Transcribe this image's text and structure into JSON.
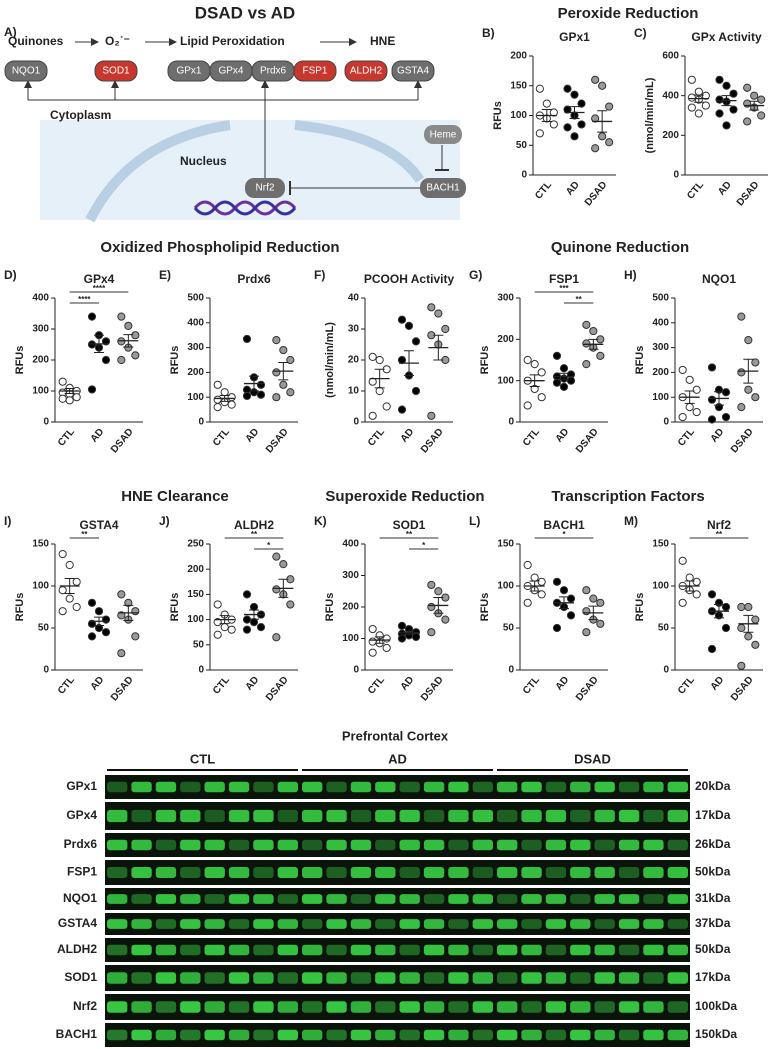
{
  "diagram": {
    "panel": "A)",
    "title": "DSAD vs AD",
    "steps": [
      "Quinones",
      "O₂˙⁻",
      "Lipid Peroxidation",
      "HNE"
    ],
    "proteins": [
      {
        "label": "NQO1",
        "color": "#6e6e6e"
      },
      {
        "label": "SOD1",
        "color": "#c8372d"
      },
      {
        "label": "GPx1",
        "color": "#6e6e6e"
      },
      {
        "label": "GPx4",
        "color": "#6e6e6e"
      },
      {
        "label": "Prdx6",
        "color": "#6e6e6e"
      },
      {
        "label": "FSP1",
        "color": "#c8372d"
      },
      {
        "label": "ALDH2",
        "color": "#c8372d"
      },
      {
        "label": "GSTA4",
        "color": "#6e6e6e"
      }
    ],
    "cytoplasm": "Cytoplasm",
    "nucleus": "Nucleus",
    "heme": "Heme",
    "nrf2": "Nrf2",
    "bach1": "BACH1"
  },
  "sections": [
    "Peroxide Reduction",
    "Oxidized Phospholipid Reduction",
    "Quinone Reduction",
    "HNE Clearance",
    "Superoxide Reduction",
    "Transcription Factors"
  ],
  "chart_data": [
    {
      "type": "dot",
      "panel": "B)",
      "title": "GPx1",
      "ylabel": "RFUs",
      "ylim": [
        0,
        200
      ],
      "yticks": [
        0,
        50,
        100,
        150,
        200
      ],
      "annotations": [],
      "series": [
        {
          "name": "CTL",
          "color": "#ffffff",
          "values": [
            145,
            120,
            105,
            100,
            95,
            85,
            70
          ],
          "mean": 100,
          "error": 10
        },
        {
          "name": "AD",
          "color": "#000000",
          "values": [
            145,
            135,
            120,
            110,
            100,
            85,
            80,
            65
          ],
          "mean": 105,
          "error": 10
        },
        {
          "name": "DSAD",
          "color": "#999999",
          "values": [
            160,
            150,
            115,
            95,
            65,
            55,
            45
          ],
          "mean": 90,
          "error": 18
        }
      ]
    },
    {
      "type": "dot",
      "panel": "C)",
      "title": "GPx Activity",
      "ylabel": "(nmol/min/mL)",
      "ylim": [
        0,
        600
      ],
      "yticks": [
        0,
        200,
        400,
        600
      ],
      "annotations": [],
      "series": [
        {
          "name": "CTL",
          "color": "#ffffff",
          "values": [
            480,
            420,
            400,
            390,
            380,
            350,
            340,
            310
          ],
          "mean": 385,
          "error": 18
        },
        {
          "name": "AD",
          "color": "#000000",
          "values": [
            480,
            450,
            410,
            380,
            370,
            330,
            310,
            250
          ],
          "mean": 375,
          "error": 25
        },
        {
          "name": "DSAD",
          "color": "#999999",
          "values": [
            440,
            400,
            380,
            360,
            340,
            300,
            270
          ],
          "mean": 350,
          "error": 22
        }
      ]
    },
    {
      "type": "dot",
      "panel": "D)",
      "title": "GPx4",
      "ylabel": "RFUs",
      "ylim": [
        0,
        400
      ],
      "yticks": [
        0,
        100,
        200,
        300,
        400
      ],
      "annotations": [
        {
          "between": [
            "CTL",
            "DSAD"
          ],
          "label": "****"
        },
        {
          "between": [
            "CTL",
            "AD"
          ],
          "label": "****"
        }
      ],
      "series": [
        {
          "name": "CTL",
          "color": "#ffffff",
          "values": [
            130,
            110,
            100,
            95,
            90,
            80,
            75,
            70
          ],
          "mean": 100,
          "error": 8
        },
        {
          "name": "AD",
          "color": "#000000",
          "values": [
            340,
            280,
            260,
            250,
            240,
            200,
            105
          ],
          "mean": 252,
          "error": 28
        },
        {
          "name": "DSAD",
          "color": "#999999",
          "values": [
            340,
            310,
            280,
            260,
            240,
            215,
            200
          ],
          "mean": 262,
          "error": 20
        }
      ]
    },
    {
      "type": "dot",
      "panel": "E)",
      "title": "Prdx6",
      "ylabel": "RFUs",
      "ylim": [
        0,
        500
      ],
      "yticks": [
        0,
        100,
        200,
        300,
        400,
        500
      ],
      "annotations": [],
      "series": [
        {
          "name": "CTL",
          "color": "#ffffff",
          "values": [
            150,
            120,
            100,
            90,
            80,
            70,
            60
          ],
          "mean": 95,
          "error": 12
        },
        {
          "name": "AD",
          "color": "#000000",
          "values": [
            335,
            180,
            150,
            130,
            120,
            110,
            105
          ],
          "mean": 155,
          "error": 30
        },
        {
          "name": "DSAD",
          "color": "#999999",
          "values": [
            330,
            290,
            250,
            200,
            150,
            120,
            100
          ],
          "mean": 205,
          "error": 35
        }
      ]
    },
    {
      "type": "dot",
      "panel": "F)",
      "title": "PCOOH Activity",
      "ylabel": "(nmol/min/mL)",
      "ylim": [
        0,
        40
      ],
      "yticks": [
        0,
        10,
        20,
        30,
        40
      ],
      "annotations": [],
      "series": [
        {
          "name": "CTL",
          "color": "#ffffff",
          "values": [
            21,
            20,
            17,
            13,
            10,
            5,
            2
          ],
          "mean": 14,
          "error": 3
        },
        {
          "name": "AD",
          "color": "#000000",
          "values": [
            33,
            31,
            26,
            20,
            15,
            10,
            4
          ],
          "mean": 19,
          "error": 4
        },
        {
          "name": "DSAD",
          "color": "#999999",
          "values": [
            37,
            35,
            30,
            28,
            25,
            20,
            2
          ],
          "mean": 24,
          "error": 4
        }
      ]
    },
    {
      "type": "dot",
      "panel": "G)",
      "title": "FSP1",
      "ylabel": "RFUs",
      "ylim": [
        0,
        300
      ],
      "yticks": [
        0,
        100,
        200,
        300
      ],
      "annotations": [
        {
          "between": [
            "CTL",
            "DSAD"
          ],
          "label": "***"
        },
        {
          "between": [
            "AD",
            "DSAD"
          ],
          "label": "**"
        }
      ],
      "series": [
        {
          "name": "CTL",
          "color": "#ffffff",
          "values": [
            150,
            140,
            120,
            100,
            80,
            60,
            40
          ],
          "mean": 100,
          "error": 14
        },
        {
          "name": "AD",
          "color": "#000000",
          "values": [
            160,
            130,
            115,
            110,
            105,
            100,
            95,
            85
          ],
          "mean": 110,
          "error": 8
        },
        {
          "name": "DSAD",
          "color": "#999999",
          "values": [
            235,
            220,
            200,
            190,
            180,
            160,
            140
          ],
          "mean": 188,
          "error": 12
        }
      ]
    },
    {
      "type": "dot",
      "panel": "H)",
      "title": "NQO1",
      "ylabel": "RFUs",
      "ylim": [
        0,
        500
      ],
      "yticks": [
        0,
        100,
        200,
        300,
        400,
        500
      ],
      "annotations": [],
      "series": [
        {
          "name": "CTL",
          "color": "#ffffff",
          "values": [
            210,
            170,
            130,
            100,
            60,
            40,
            20
          ],
          "mean": 100,
          "error": 25
        },
        {
          "name": "AD",
          "color": "#000000",
          "values": [
            220,
            130,
            120,
            90,
            60,
            20,
            10
          ],
          "mean": 95,
          "error": 27
        },
        {
          "name": "DSAD",
          "color": "#999999",
          "values": [
            425,
            330,
            240,
            200,
            130,
            100,
            60
          ],
          "mean": 205,
          "error": 48
        }
      ]
    },
    {
      "type": "dot",
      "panel": "I)",
      "title": "GSTA4",
      "ylabel": "RFUs",
      "ylim": [
        0,
        150
      ],
      "yticks": [
        0,
        50,
        100,
        150
      ],
      "annotations": [
        {
          "between": [
            "CTL",
            "AD"
          ],
          "label": "**"
        }
      ],
      "series": [
        {
          "name": "CTL",
          "color": "#ffffff",
          "values": [
            138,
            125,
            105,
            95,
            85,
            75,
            70
          ],
          "mean": 100,
          "error": 9
        },
        {
          "name": "AD",
          "color": "#000000",
          "values": [
            80,
            70,
            60,
            55,
            50,
            45,
            40
          ],
          "mean": 58,
          "error": 5
        },
        {
          "name": "DSAD",
          "color": "#999999",
          "values": [
            90,
            80,
            70,
            65,
            60,
            40,
            20
          ],
          "mean": 68,
          "error": 9
        }
      ]
    },
    {
      "type": "dot",
      "panel": "J)",
      "title": "ALDH2",
      "ylabel": "RFUs",
      "ylim": [
        0,
        250
      ],
      "yticks": [
        0,
        50,
        100,
        150,
        200,
        250
      ],
      "annotations": [
        {
          "between": [
            "CTL",
            "DSAD"
          ],
          "label": "**"
        },
        {
          "between": [
            "AD",
            "DSAD"
          ],
          "label": "*"
        }
      ],
      "series": [
        {
          "name": "CTL",
          "color": "#ffffff",
          "values": [
            130,
            110,
            100,
            95,
            85,
            80,
            70
          ],
          "mean": 100,
          "error": 8
        },
        {
          "name": "AD",
          "color": "#000000",
          "values": [
            150,
            125,
            110,
            100,
            95,
            85,
            80
          ],
          "mean": 110,
          "error": 9
        },
        {
          "name": "DSAD",
          "color": "#999999",
          "values": [
            225,
            210,
            180,
            160,
            150,
            130,
            65
          ],
          "mean": 162,
          "error": 18
        }
      ]
    },
    {
      "type": "dot",
      "panel": "K)",
      "title": "SOD1",
      "ylabel": "RFUs",
      "ylim": [
        0,
        400
      ],
      "yticks": [
        0,
        100,
        200,
        300,
        400
      ],
      "annotations": [
        {
          "between": [
            "CTL",
            "DSAD"
          ],
          "label": "**"
        },
        {
          "between": [
            "AD",
            "DSAD"
          ],
          "label": "*"
        }
      ],
      "series": [
        {
          "name": "CTL",
          "color": "#ffffff",
          "values": [
            130,
            110,
            100,
            90,
            85,
            70,
            55
          ],
          "mean": 95,
          "error": 10
        },
        {
          "name": "AD",
          "color": "#000000",
          "values": [
            140,
            130,
            120,
            115,
            110,
            105,
            100
          ],
          "mean": 118,
          "error": 6
        },
        {
          "name": "DSAD",
          "color": "#999999",
          "values": [
            270,
            250,
            230,
            200,
            180,
            160,
            120
          ],
          "mean": 205,
          "error": 25
        }
      ]
    },
    {
      "type": "dot",
      "panel": "L)",
      "title": "BACH1",
      "ylabel": "RFUs",
      "ylim": [
        0,
        150
      ],
      "yticks": [
        0,
        50,
        100,
        150
      ],
      "annotations": [
        {
          "between": [
            "CTL",
            "DSAD"
          ],
          "label": "*"
        }
      ],
      "series": [
        {
          "name": "CTL",
          "color": "#ffffff",
          "values": [
            125,
            110,
            105,
            100,
            95,
            90,
            80
          ],
          "mean": 100,
          "error": 6
        },
        {
          "name": "AD",
          "color": "#000000",
          "values": [
            105,
            95,
            85,
            80,
            75,
            65,
            50
          ],
          "mean": 80,
          "error": 7
        },
        {
          "name": "DSAD",
          "color": "#999999",
          "values": [
            95,
            85,
            80,
            70,
            60,
            55,
            45
          ],
          "mean": 68,
          "error": 8
        }
      ]
    },
    {
      "type": "dot",
      "panel": "M)",
      "title": "Nrf2",
      "ylabel": "RFUs",
      "ylim": [
        0,
        150
      ],
      "yticks": [
        0,
        50,
        100,
        150
      ],
      "annotations": [
        {
          "between": [
            "CTL",
            "DSAD"
          ],
          "label": "**"
        }
      ],
      "series": [
        {
          "name": "CTL",
          "color": "#ffffff",
          "values": [
            130,
            110,
            105,
            100,
            95,
            90,
            80
          ],
          "mean": 100,
          "error": 6
        },
        {
          "name": "AD",
          "color": "#000000",
          "values": [
            90,
            80,
            75,
            70,
            65,
            50,
            25
          ],
          "mean": 70,
          "error": 8
        },
        {
          "name": "DSAD",
          "color": "#999999",
          "values": [
            75,
            75,
            60,
            50,
            40,
            30,
            5
          ],
          "mean": 55,
          "error": 10
        }
      ]
    }
  ],
  "blot": {
    "title": "Prefrontal Cortex",
    "groups": [
      "CTL",
      "AD",
      "DSAD"
    ],
    "rows": [
      {
        "label": "GPx1",
        "size": "20kDa"
      },
      {
        "label": "GPx4",
        "size": "17kDa"
      },
      {
        "label": "Prdx6",
        "size": "26kDa"
      },
      {
        "label": "FSP1",
        "size": "50kDa"
      },
      {
        "label": "NQO1",
        "size": "31kDa"
      },
      {
        "label": "GSTA4",
        "size": "37kDa"
      },
      {
        "label": "ALDH2",
        "size": "50kDa"
      },
      {
        "label": "SOD1",
        "size": "17kDa"
      },
      {
        "label": "Nrf2",
        "size": "100kDa"
      },
      {
        "label": "BACH1",
        "size": "150kDa"
      }
    ]
  }
}
